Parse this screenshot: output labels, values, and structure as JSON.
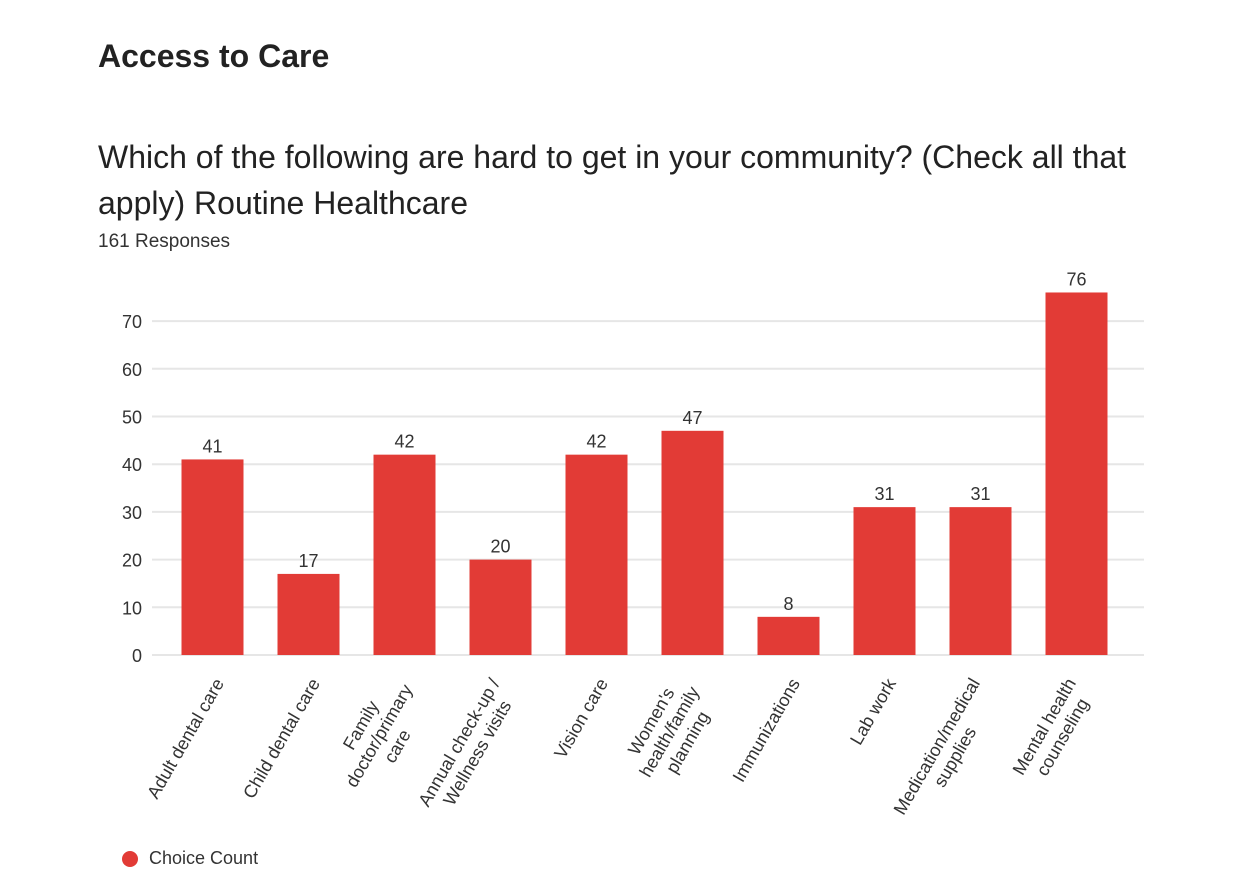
{
  "header": {
    "section_title": "Access to Care",
    "question": "Which of the following are hard to get in your community? (Check all that apply) Routine Healthcare",
    "responses": "161 Responses"
  },
  "colors": {
    "bar": "#e23b36",
    "grid": "#e6e6e6",
    "text": "#333333"
  },
  "legend": {
    "label": "Choice Count",
    "icon": "circle-icon"
  },
  "chart_data": {
    "type": "bar",
    "title": "Which of the following are hard to get in your community? (Check all that apply) Routine Healthcare",
    "xlabel": "",
    "ylabel": "",
    "ylim": [
      0,
      80
    ],
    "yticks": [
      0,
      10,
      20,
      30,
      40,
      50,
      60,
      70
    ],
    "grid": true,
    "legend_position": "bottom-left",
    "categories": [
      [
        "Adult dental care"
      ],
      [
        "Child dental care"
      ],
      [
        "Family",
        "doctor/primary",
        "care"
      ],
      [
        "Annual check-up /",
        "Wellness visits"
      ],
      [
        "Vision care"
      ],
      [
        "Women's",
        "health/family",
        "planning"
      ],
      [
        "Immunizations"
      ],
      [
        "Lab work"
      ],
      [
        "Medication/medical",
        "supplies"
      ],
      [
        "Mental health",
        "counseling"
      ]
    ],
    "series": [
      {
        "name": "Choice Count",
        "values": [
          41,
          17,
          42,
          20,
          42,
          47,
          8,
          31,
          31,
          76
        ]
      }
    ]
  }
}
